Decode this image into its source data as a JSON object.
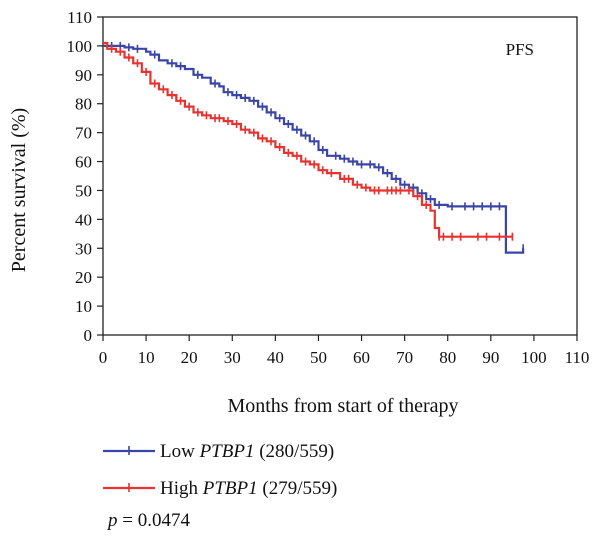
{
  "chart_data": {
    "type": "line",
    "subtype": "kaplan-meier-step",
    "xlabel": "Months from start of therapy",
    "ylabel": "Percent survival (%)",
    "xlim": [
      0,
      110
    ],
    "ylim": [
      0,
      110
    ],
    "x_ticks": [
      "0",
      "10",
      "20",
      "30",
      "40",
      "50",
      "60",
      "70",
      "80",
      "90",
      "100",
      "110"
    ],
    "y_ticks": [
      "0",
      "10",
      "20",
      "30",
      "40",
      "50",
      "60",
      "70",
      "80",
      "90",
      "100",
      "110"
    ],
    "grid": false,
    "annotation": "PFS",
    "p_value": {
      "label": "p",
      "text": " = 0.0474"
    },
    "legend_placement": "bottom-left",
    "series": [
      {
        "name": "Low PTBP1 (280/559)",
        "name_prefix": "Low ",
        "name_gene": "PTBP1",
        "name_suffix": " (280/559)",
        "color": "#3a45a8",
        "points": [
          [
            0,
            100
          ],
          [
            3,
            100
          ],
          [
            5,
            99.5
          ],
          [
            7,
            99
          ],
          [
            9,
            99
          ],
          [
            10,
            98
          ],
          [
            11,
            97
          ],
          [
            13,
            95
          ],
          [
            15,
            94
          ],
          [
            17,
            93
          ],
          [
            19,
            92
          ],
          [
            21,
            90
          ],
          [
            23,
            89
          ],
          [
            25,
            87
          ],
          [
            27,
            86
          ],
          [
            28,
            84
          ],
          [
            30,
            83
          ],
          [
            32,
            82
          ],
          [
            34,
            81
          ],
          [
            36,
            79
          ],
          [
            38,
            77
          ],
          [
            40,
            75
          ],
          [
            42,
            73
          ],
          [
            44,
            71
          ],
          [
            46,
            69
          ],
          [
            48,
            67
          ],
          [
            50,
            64
          ],
          [
            52,
            62
          ],
          [
            55,
            61
          ],
          [
            57,
            60
          ],
          [
            59,
            59
          ],
          [
            61,
            59
          ],
          [
            63,
            58
          ],
          [
            65,
            56
          ],
          [
            67,
            54
          ],
          [
            69,
            52
          ],
          [
            71,
            51
          ],
          [
            73,
            49
          ],
          [
            75,
            47
          ],
          [
            77,
            45
          ],
          [
            80,
            44.5
          ],
          [
            85,
            44.5
          ],
          [
            90,
            44.5
          ],
          [
            93,
            44.5
          ],
          [
            93.5,
            28.5
          ],
          [
            97,
            28.5
          ],
          [
            97.5,
            30
          ]
        ],
        "censor_x": [
          2,
          4,
          6,
          8,
          12,
          16,
          18,
          22,
          26,
          29,
          31,
          33,
          35,
          37,
          39,
          41,
          43,
          45,
          47,
          49,
          51,
          54,
          56,
          58,
          60,
          62,
          64,
          66,
          68,
          70,
          72,
          74,
          76,
          78,
          81,
          84,
          86,
          88,
          90,
          92,
          97.5
        ]
      },
      {
        "name": "High PTBP1 (279/559)",
        "name_prefix": "High ",
        "name_gene": "PTBP1",
        "name_suffix": " (279/559)",
        "color": "#e8322f",
        "points": [
          [
            0,
            101
          ],
          [
            1,
            99
          ],
          [
            3,
            98
          ],
          [
            5,
            96
          ],
          [
            7,
            94
          ],
          [
            9,
            91
          ],
          [
            11,
            87
          ],
          [
            13,
            85
          ],
          [
            15,
            83
          ],
          [
            17,
            81
          ],
          [
            19,
            79
          ],
          [
            21,
            77
          ],
          [
            23,
            76
          ],
          [
            25,
            75
          ],
          [
            28,
            74
          ],
          [
            30,
            73
          ],
          [
            32,
            71
          ],
          [
            34,
            70
          ],
          [
            36,
            68
          ],
          [
            38,
            67
          ],
          [
            40,
            65
          ],
          [
            42,
            63
          ],
          [
            44,
            62
          ],
          [
            46,
            60
          ],
          [
            48,
            59
          ],
          [
            50,
            57
          ],
          [
            52,
            56
          ],
          [
            55,
            54
          ],
          [
            58,
            52
          ],
          [
            60,
            51
          ],
          [
            62,
            50
          ],
          [
            65,
            50
          ],
          [
            70,
            50
          ],
          [
            72,
            48
          ],
          [
            74,
            45
          ],
          [
            76,
            43
          ],
          [
            77,
            37
          ],
          [
            78,
            34
          ],
          [
            80,
            34
          ],
          [
            85,
            34
          ],
          [
            90,
            34
          ],
          [
            95,
            34
          ]
        ],
        "censor_x": [
          2,
          4,
          6,
          8,
          10,
          12,
          14,
          16,
          18,
          20,
          22,
          24,
          26,
          27,
          29,
          31,
          33,
          35,
          37,
          39,
          41,
          43,
          45,
          47,
          49,
          51,
          53,
          56,
          57,
          59,
          61,
          63,
          64,
          66,
          67,
          68,
          69,
          71,
          73,
          75,
          78,
          79,
          81,
          83,
          87,
          89,
          92,
          95
        ]
      }
    ]
  }
}
